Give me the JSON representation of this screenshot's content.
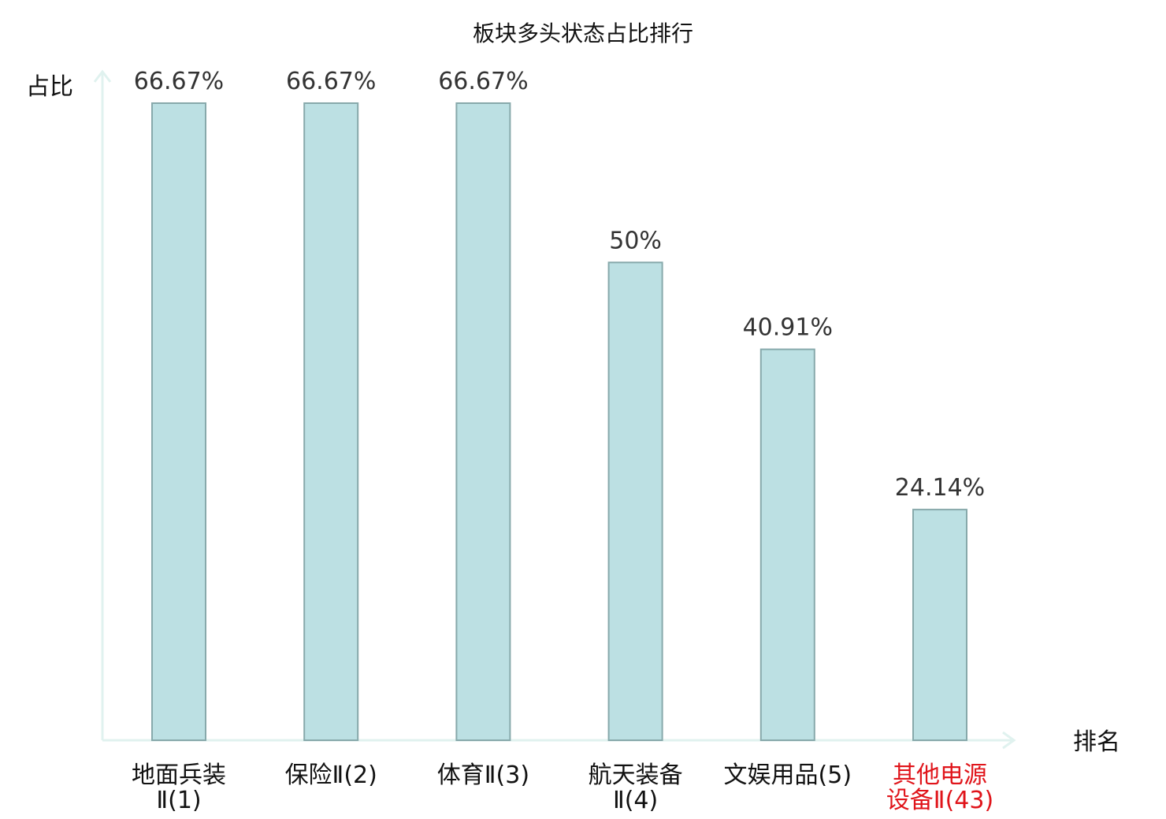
{
  "chart_data": {
    "type": "bar",
    "title": "板块多头状态占比排行",
    "xlabel": "排名",
    "ylabel": "占比",
    "categories": [
      {
        "line1": "地面兵装",
        "line2": "Ⅱ(1)",
        "highlight": false
      },
      {
        "line1": "保险Ⅱ(2)",
        "line2": "",
        "highlight": false
      },
      {
        "line1": "体育Ⅱ(3)",
        "line2": "",
        "highlight": false
      },
      {
        "line1": "航天装备",
        "line2": "Ⅱ(4)",
        "highlight": false
      },
      {
        "line1": "文娱用品(5)",
        "line2": "",
        "highlight": false
      },
      {
        "line1": "其他电源",
        "line2": "设备Ⅱ(43)",
        "highlight": true
      }
    ],
    "values": [
      66.67,
      66.67,
      66.67,
      50,
      40.91,
      24.14
    ],
    "value_labels": [
      "66.67%",
      "66.67%",
      "66.67%",
      "50%",
      "40.91%",
      "24.14%"
    ],
    "ylim": [
      0,
      66.67
    ],
    "grid": false,
    "colors": {
      "bar_fill": "#bce0e3",
      "bar_stroke": "#87a9ab",
      "axis": "#e0f2ef",
      "highlight_text": "#e0151b",
      "text": "#111111",
      "value_text": "#333333"
    }
  }
}
